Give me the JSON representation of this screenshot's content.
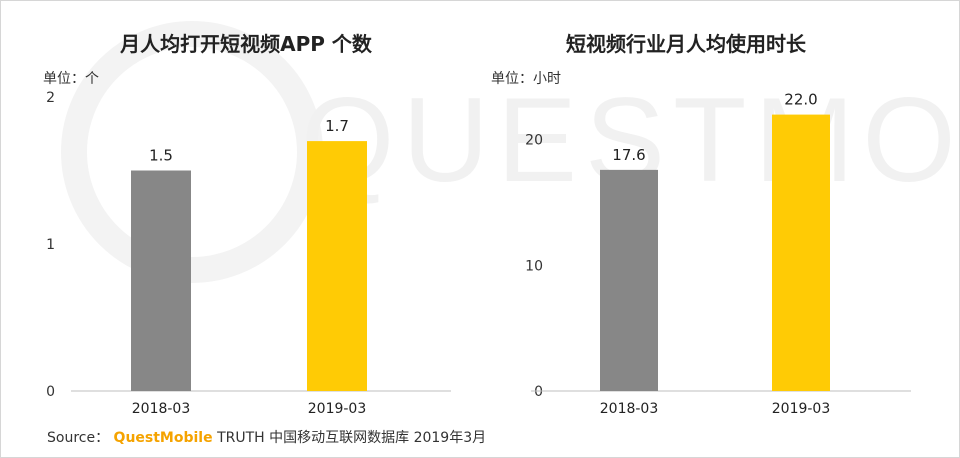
{
  "watermark": {
    "text": "QUESTMOBILE"
  },
  "source": {
    "label": "Source：",
    "brand": "QuestMobile",
    "rest": "TRUTH 中国移动互联网数据库 2019年3月"
  },
  "colors": {
    "gray": "#878787",
    "yellow": "#ffcb05",
    "axis": "#bfbfbf"
  },
  "chart_data": [
    {
      "type": "bar",
      "title": "月人均打开短视频APP 个数",
      "unit": "单位：个",
      "categories": [
        "2018-03",
        "2019-03"
      ],
      "values": [
        1.5,
        1.7
      ],
      "value_labels": [
        "1.5",
        "1.7"
      ],
      "yticks": [
        "0",
        "1",
        "2"
      ],
      "ylim": [
        0,
        2
      ],
      "bar_colors": [
        "#878787",
        "#ffcb05"
      ],
      "grid": false
    },
    {
      "type": "bar",
      "title": "短视频行业月人均使用时长",
      "unit": "单位：小时",
      "categories": [
        "2018-03",
        "2019-03"
      ],
      "values": [
        17.6,
        22.0
      ],
      "value_labels": [
        "17.6",
        "22.0"
      ],
      "yticks": [
        "0",
        "10",
        "20"
      ],
      "ylim": [
        0,
        23.4
      ],
      "bar_colors": [
        "#878787",
        "#ffcb05"
      ],
      "grid": false
    }
  ]
}
